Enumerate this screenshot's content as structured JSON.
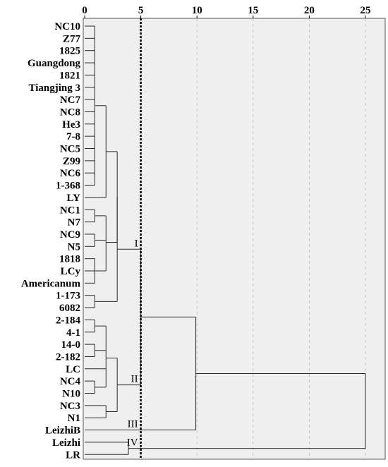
{
  "chart_data": {
    "type": "dendrogram",
    "x_axis": {
      "ticks": [
        0,
        5,
        10,
        15,
        20,
        25
      ],
      "range": [
        0,
        25
      ],
      "grid": true,
      "position": "top"
    },
    "cutoff_line": {
      "x": 5,
      "style": "dotted"
    },
    "leaves": [
      "NC10",
      "Z77",
      "1825",
      "Guangdong",
      "1821",
      "Tiangjing 3",
      "NC7",
      "NC8",
      "He3",
      "7-8",
      "NC5",
      "Z99",
      "NC6",
      "1-368",
      "LY",
      "NC1",
      "N7",
      "NC9",
      "N5",
      "1818",
      "LCy",
      "Americanum",
      "1-173",
      "6082",
      "2-184",
      "4-1",
      "14-0",
      "2-182",
      "LC",
      "NC4",
      "N10",
      "NC3",
      "N1",
      "LeizhiB",
      "Leizhi",
      "LR"
    ],
    "merges": [
      {
        "children": [
          0,
          1,
          2,
          3,
          4,
          5,
          6,
          7,
          8,
          9,
          10,
          11,
          12,
          13
        ],
        "height": 0.9,
        "id": "A"
      },
      {
        "children": [
          17,
          18
        ],
        "height": 0.9,
        "id": "B"
      },
      {
        "children": [
          19,
          20,
          21
        ],
        "height": 0.9,
        "id": "C"
      },
      {
        "children": [
          "A",
          14
        ],
        "height": 1.9,
        "id": "D"
      },
      {
        "children": [
          15,
          16
        ],
        "height": 0.9,
        "id": "E"
      },
      {
        "children": [
          "E",
          "B",
          "C"
        ],
        "height": 1.9,
        "id": "F"
      },
      {
        "children": [
          "D",
          "F"
        ],
        "height": 2.9,
        "id": "G"
      },
      {
        "children": [
          22,
          23
        ],
        "height": 0.9,
        "id": "H"
      },
      {
        "children": [
          "G",
          "H"
        ],
        "height": 2.9,
        "id": "Cluster I"
      },
      {
        "children": [
          24,
          25
        ],
        "height": 0.9,
        "id": "J"
      },
      {
        "children": [
          26,
          27
        ],
        "height": 0.9,
        "id": "K"
      },
      {
        "children": [
          29,
          30
        ],
        "height": 0.9,
        "id": "L"
      },
      {
        "children": [
          "J",
          "K",
          28,
          "L"
        ],
        "height": 1.9,
        "id": "M"
      },
      {
        "children": [
          31,
          32
        ],
        "height": 1.9,
        "id": "N"
      },
      {
        "children": [
          "M",
          "N"
        ],
        "height": 2.9,
        "id": "Cluster II"
      },
      {
        "children": [
          "Cluster I",
          "Cluster II"
        ],
        "height": 5.0,
        "id": "O"
      },
      {
        "children": [
          "O",
          33
        ],
        "height": 9.9,
        "id": "P"
      },
      {
        "children": [
          34,
          35
        ],
        "height": 3.9,
        "id": "Q"
      },
      {
        "children": [
          "P",
          "Q"
        ],
        "height": 25,
        "id": "Root"
      }
    ],
    "cluster_labels": [
      {
        "text": "I",
        "node": "Cluster I"
      },
      {
        "text": "II",
        "node": "Cluster II"
      },
      {
        "text": "III",
        "leaf": 33
      },
      {
        "text": "IV",
        "node": "Q"
      }
    ],
    "colors": {
      "plot_background": "#efefef",
      "lines": "#2b2b2b",
      "grid": "#bdbdbd",
      "cutoff": "#000000"
    }
  }
}
